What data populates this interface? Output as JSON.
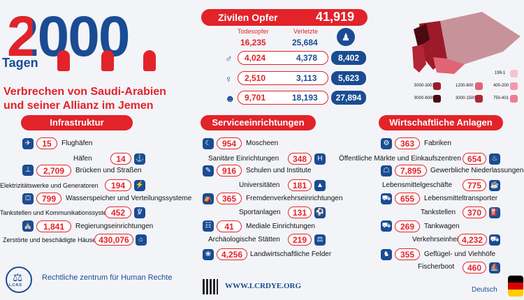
{
  "headline": {
    "number": "2000",
    "tagen": "Tagen",
    "line1": "Verbrechen von Saudi-Arabien",
    "line2": "und seiner Allianz im Jemen"
  },
  "victims": {
    "title": "Zivilen Opfer",
    "total": "41,919",
    "col1": "Todesopfer",
    "col2": "Verletzte",
    "totals": {
      "dead": "16,235",
      "injured": "25,684"
    },
    "rows": [
      {
        "icon": "man-icon",
        "dead": "4,024",
        "injured": "4,378",
        "sum": "8,402"
      },
      {
        "icon": "woman-icon",
        "dead": "2,510",
        "injured": "3,113",
        "sum": "5,623"
      },
      {
        "icon": "child-icon",
        "dead": "9,701",
        "injured": "18,193",
        "sum": "27,894"
      }
    ]
  },
  "legend": [
    {
      "label": "5000-3001",
      "color": "#9b1b2a"
    },
    {
      "label": "1200-800",
      "color": "#e06476"
    },
    {
      "label": "199-1",
      "color": "#f7c4cc"
    },
    {
      "label": "9000-6000",
      "color": "#4a0a13"
    },
    {
      "label": "3000-1500",
      "color": "#b42437"
    },
    {
      "label": "400-200",
      "color": "#f39aa9"
    },
    {
      "label": "750-401",
      "color": "#ec7d90"
    }
  ],
  "sections": {
    "infra": "Infrastruktur",
    "service": "Serviceeinrichtungen",
    "economic": "Wirtschaftliche Anlagen"
  },
  "infra": [
    {
      "value": "15",
      "label": "Flughäfen"
    },
    {
      "value": "14",
      "label": "Häfen"
    },
    {
      "value": "2,709",
      "label": "Brücken und Straßen"
    },
    {
      "value": "194",
      "label": "Elektrizitätswerke und Generatoren"
    },
    {
      "value": "799",
      "label": "Wasserspeicher und Verteilungssysteme"
    },
    {
      "value": "452",
      "label": "Tankstellen und Kommunikationssysteme"
    },
    {
      "value": "1,841",
      "label": "Regierungseinrichtungen"
    },
    {
      "value": "430,076",
      "label": "Zerstörte und beschädigte Häuser"
    }
  ],
  "service": [
    {
      "value": "954",
      "label": "Moscheen"
    },
    {
      "value": "348",
      "label": "Sanitäre Einrichtungen"
    },
    {
      "value": "916",
      "label": "Schulen und Institute"
    },
    {
      "value": "181",
      "label": "Universitäten"
    },
    {
      "value": "365",
      "label": "Fremdenverkehrseinrichtungen"
    },
    {
      "value": "131",
      "label": "Sportanlagen"
    },
    {
      "value": "41",
      "label": "Mediale Einrichtungen"
    },
    {
      "value": "219",
      "label": "Archäologische Stätten"
    },
    {
      "value": "4,256",
      "label": "Landwirtschaftliche Felder"
    }
  ],
  "economic": [
    {
      "value": "363",
      "label": "Fabriken"
    },
    {
      "value": "654",
      "label": "Öffentliche Märkte und Einkaufszentren"
    },
    {
      "value": "7,895",
      "label": "Gewerbliche Niederlassungen"
    },
    {
      "value": "775",
      "label": "Lebensmittelgeschäfte"
    },
    {
      "value": "655",
      "label": "Lebensmitteltransporter"
    },
    {
      "value": "370",
      "label": "Tankstellen"
    },
    {
      "value": "269",
      "label": "Tankwagen"
    },
    {
      "value": "4,232",
      "label": "Verkehrseinheiten"
    },
    {
      "value": "355",
      "label": "Geflügel- und Viehhöfe"
    },
    {
      "value": "460",
      "label": "Fischerboot"
    }
  ],
  "footer": {
    "org": "Rechtliche zentrum für Human Rechte",
    "url": "WWW.LCRDYE.ORG",
    "lang": "Deutsch",
    "logo_text": "L.C.R.D"
  }
}
